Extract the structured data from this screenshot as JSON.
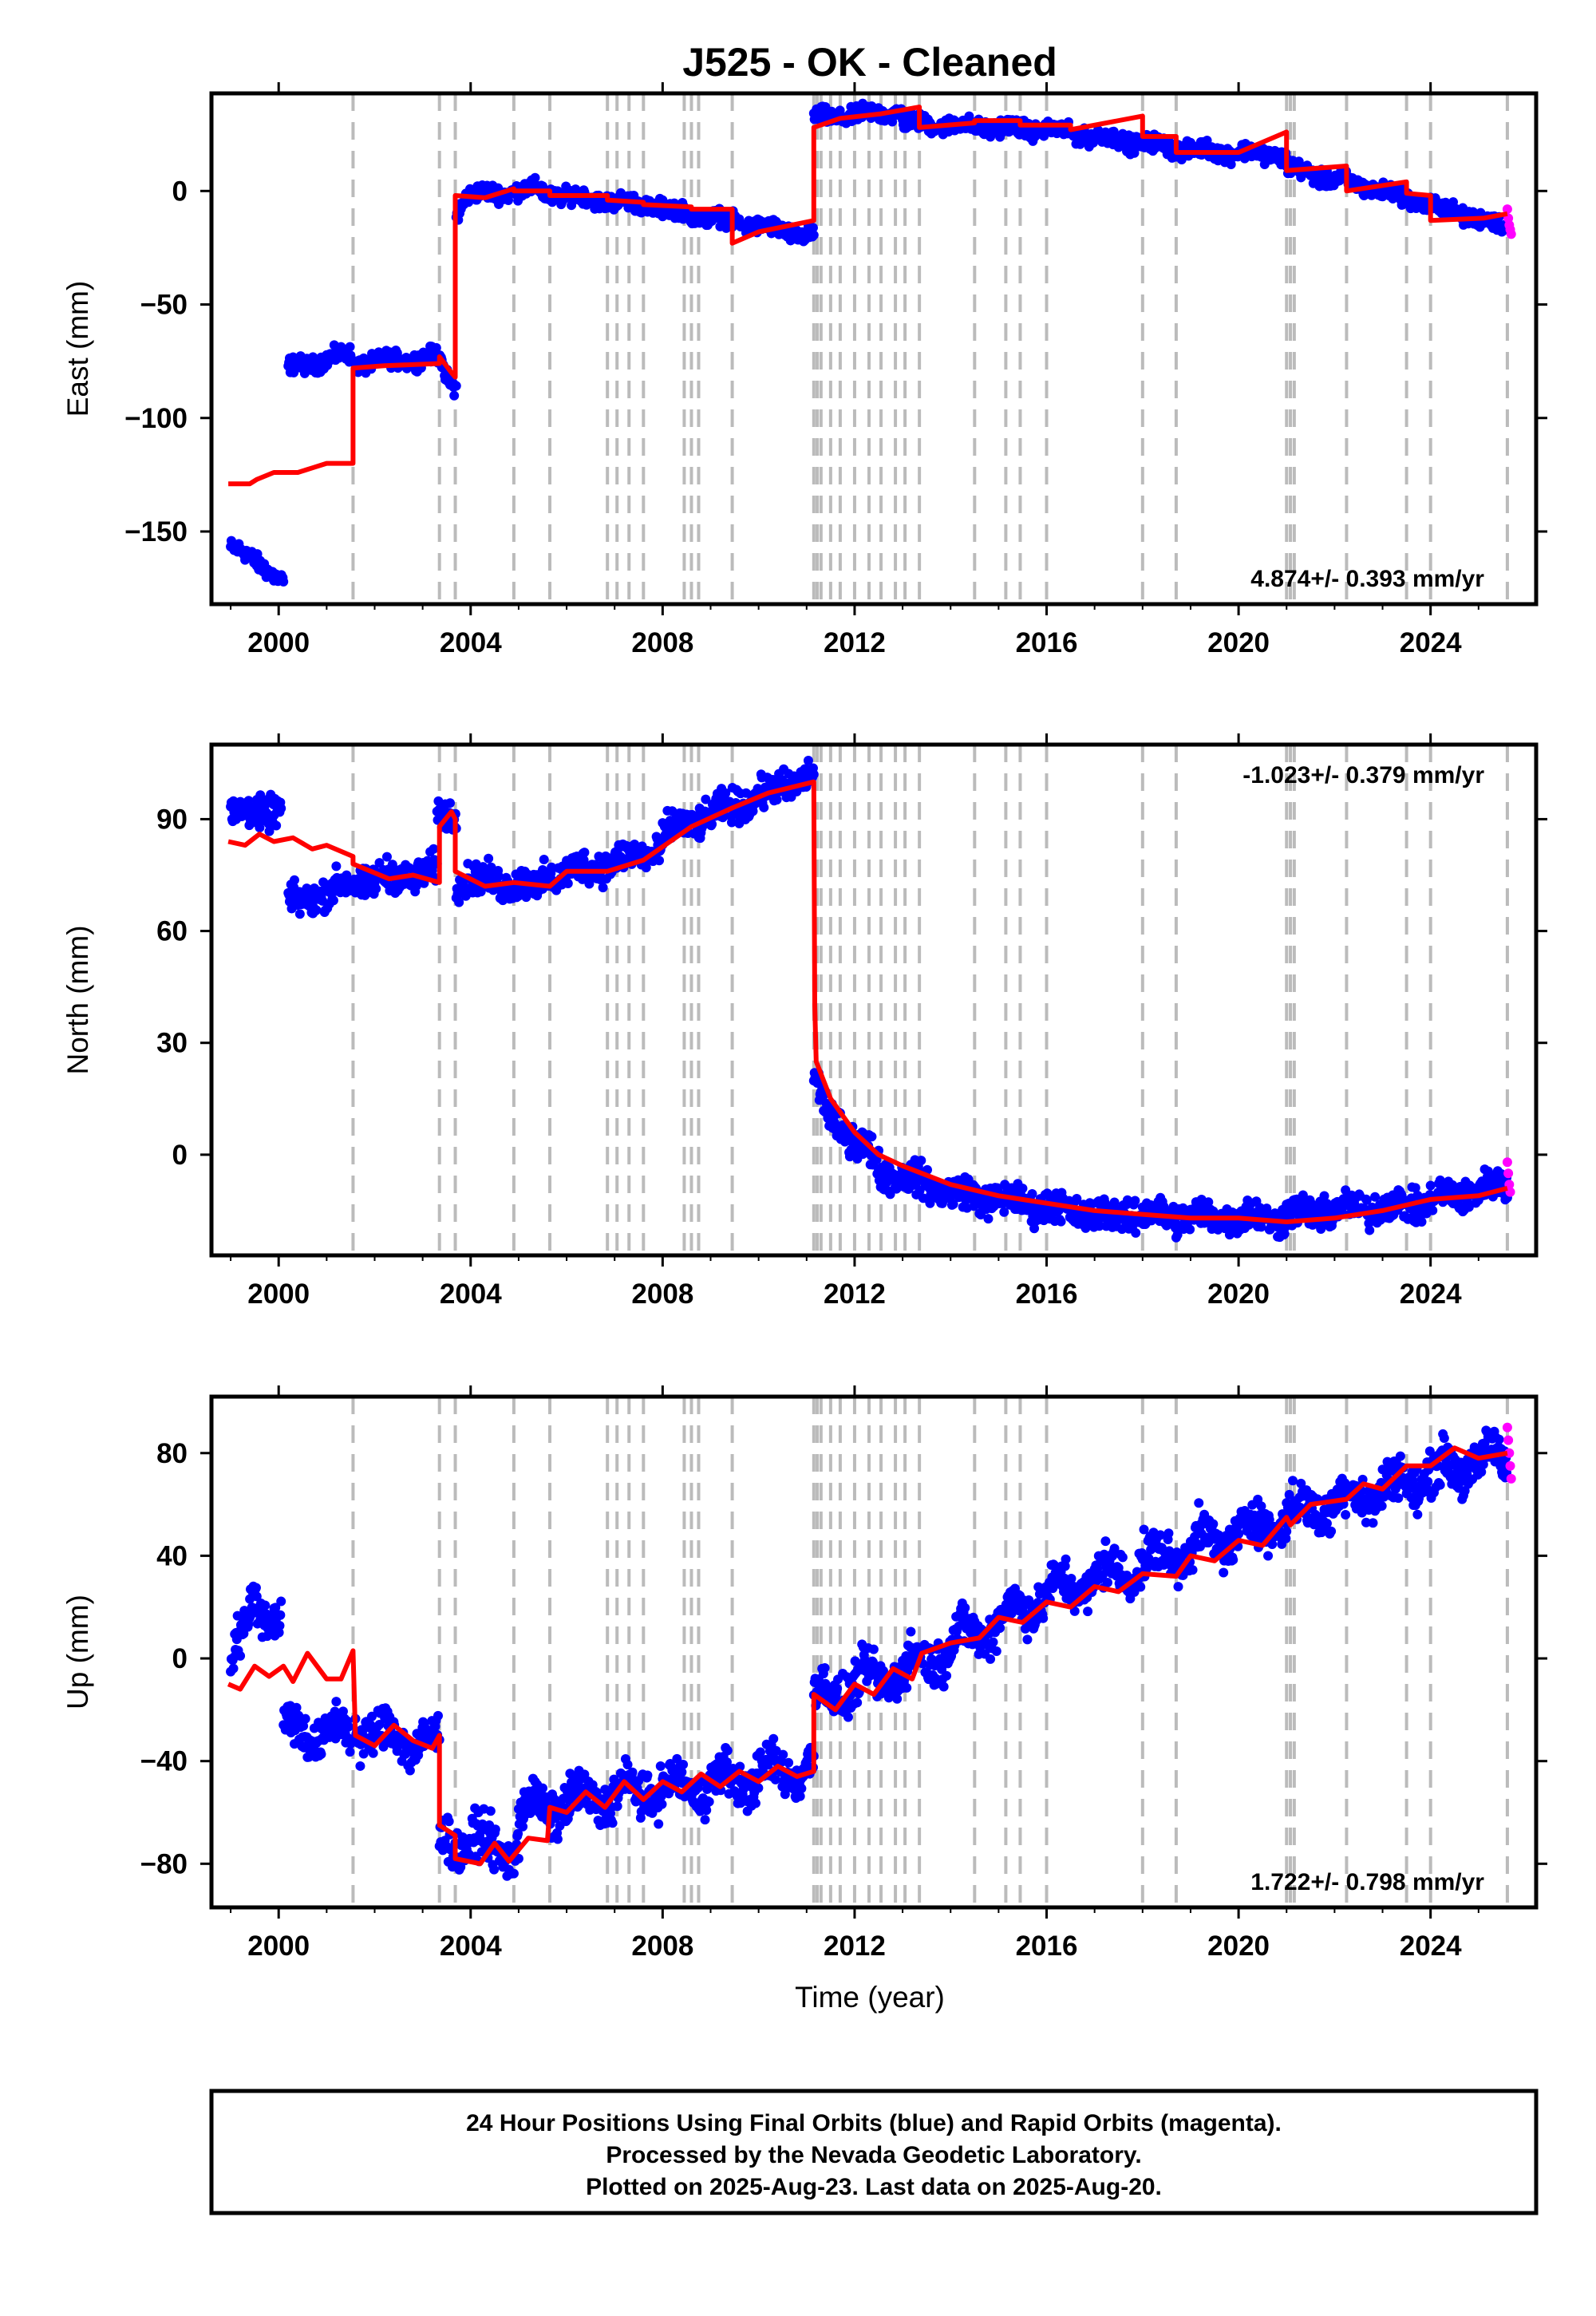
{
  "chart_data": {
    "type": "scatter",
    "title": "J525  - OK - Cleaned",
    "xlabel": "Time (year)",
    "x_ticks": [
      2000,
      2004,
      2008,
      2012,
      2016,
      2020,
      2024
    ],
    "xlim": [
      1998.6,
      2026.2
    ],
    "colors": {
      "final": "#0000ff",
      "rapid": "#ff00ff",
      "model": "#ff0000",
      "steps": "#bbbbbb"
    },
    "step_epochs": [
      2001.55,
      2003.35,
      2003.68,
      2004.9,
      2005.65,
      2006.85,
      2007.05,
      2007.3,
      2007.6,
      2008.45,
      2008.6,
      2008.75,
      2009.45,
      2011.15,
      2011.22,
      2011.3,
      2011.5,
      2011.7,
      2012.0,
      2012.3,
      2012.55,
      2012.85,
      2013.05,
      2013.35,
      2014.5,
      2015.15,
      2015.45,
      2016.0,
      2018.0,
      2018.7,
      2021.0,
      2021.08,
      2021.16,
      2022.25,
      2023.5,
      2024.0,
      2025.6
    ],
    "panels": [
      {
        "ylabel": "East (mm)",
        "ylim": [
          -182,
          43
        ],
        "y_ticks": [
          -150,
          -100,
          -50,
          0
        ],
        "rate": "4.874+/- 0.393 mm/yr",
        "rate_pos": "bottom-right",
        "noise": 2.5,
        "segments": [
          [
            1999.0,
            1999.7,
            -157,
            -165
          ],
          [
            1999.7,
            2000.1,
            -165,
            -173
          ],
          [
            2000.2,
            2001.5,
            -78,
            -72
          ],
          [
            2001.6,
            2003.4,
            -76,
            -73
          ],
          [
            2003.4,
            2003.7,
            -80,
            -86
          ],
          [
            2003.7,
            2003.9,
            -10,
            -3
          ],
          [
            2003.9,
            2005.5,
            -2,
            1
          ],
          [
            2005.5,
            2008.0,
            -1,
            -7
          ],
          [
            2008.0,
            2011.15,
            -8,
            -20
          ],
          [
            2011.15,
            2013.0,
            32,
            35
          ],
          [
            2013.0,
            2016.0,
            30,
            27
          ],
          [
            2016.0,
            2019.0,
            27,
            18
          ],
          [
            2019.0,
            2021.0,
            18,
            16
          ],
          [
            2021.0,
            2023.0,
            10,
            0
          ],
          [
            2023.0,
            2025.6,
            0,
            -16
          ]
        ],
        "rapid": [
          [
            2025.6,
            -8
          ],
          [
            2025.62,
            -12
          ],
          [
            2025.64,
            -15
          ],
          [
            2025.66,
            -17
          ],
          [
            2025.68,
            -19
          ]
        ],
        "model": [
          [
            1998.95,
            -129
          ],
          [
            1999.4,
            -129
          ],
          [
            1999.55,
            -127
          ],
          [
            1999.9,
            -124
          ],
          [
            2000.4,
            -124
          ],
          [
            2000.7,
            -122
          ],
          [
            2001.0,
            -120
          ],
          [
            2001.55,
            -120
          ],
          [
            2001.55,
            -78
          ],
          [
            2002.2,
            -77
          ],
          [
            2003.35,
            -76
          ],
          [
            2003.35,
            -73
          ],
          [
            2003.6,
            -80
          ],
          [
            2003.68,
            -82
          ],
          [
            2003.68,
            -2
          ],
          [
            2004.3,
            -3
          ],
          [
            2004.9,
            1
          ],
          [
            2004.9,
            0
          ],
          [
            2005.65,
            0
          ],
          [
            2005.65,
            -2
          ],
          [
            2006.85,
            -2
          ],
          [
            2006.85,
            -4
          ],
          [
            2007.6,
            -5
          ],
          [
            2007.6,
            -6
          ],
          [
            2008.6,
            -7
          ],
          [
            2008.6,
            -8
          ],
          [
            2009.45,
            -8
          ],
          [
            2009.45,
            -23
          ],
          [
            2010.0,
            -18
          ],
          [
            2011.15,
            -13
          ],
          [
            2011.15,
            28
          ],
          [
            2011.7,
            32
          ],
          [
            2012.55,
            34
          ],
          [
            2013.35,
            37
          ],
          [
            2013.35,
            28
          ],
          [
            2014.5,
            30
          ],
          [
            2014.5,
            31
          ],
          [
            2015.45,
            31
          ],
          [
            2015.45,
            29
          ],
          [
            2016.5,
            29
          ],
          [
            2016.5,
            27
          ],
          [
            2018.0,
            33
          ],
          [
            2018.0,
            24
          ],
          [
            2018.7,
            24
          ],
          [
            2018.7,
            17
          ],
          [
            2020.0,
            17
          ],
          [
            2021.0,
            26
          ],
          [
            2021.0,
            9
          ],
          [
            2022.25,
            11
          ],
          [
            2022.25,
            0
          ],
          [
            2023.5,
            4
          ],
          [
            2023.5,
            -1
          ],
          [
            2024.0,
            -2
          ],
          [
            2024.0,
            -13
          ],
          [
            2025.1,
            -12
          ],
          [
            2025.6,
            -10
          ]
        ]
      },
      {
        "ylabel": "North (mm)",
        "ylim": [
          -27,
          110
        ],
        "y_ticks": [
          0,
          30,
          60,
          90
        ],
        "rate": "-1.023+/- 0.379 mm/yr",
        "rate_pos": "top-right",
        "noise": 3,
        "segments": [
          [
            1999.0,
            2000.05,
            91,
            93
          ],
          [
            2000.2,
            2001.6,
            67,
            73
          ],
          [
            2001.6,
            2003.3,
            73,
            76
          ],
          [
            2003.3,
            2003.7,
            90,
            92
          ],
          [
            2003.7,
            2005.5,
            74,
            72
          ],
          [
            2005.5,
            2008.0,
            74,
            82
          ],
          [
            2008.0,
            2011.15,
            86,
            102
          ],
          [
            2011.15,
            2011.5,
            20,
            10
          ],
          [
            2011.5,
            2012.5,
            10,
            -2
          ],
          [
            2012.5,
            2014.0,
            -4,
            -10
          ],
          [
            2014.0,
            2017.0,
            -10,
            -16
          ],
          [
            2017.0,
            2021.0,
            -16,
            -17
          ],
          [
            2021.0,
            2024.0,
            -16,
            -13
          ],
          [
            2024.0,
            2025.6,
            -12,
            -8
          ]
        ],
        "rapid": [
          [
            2025.6,
            -2
          ],
          [
            2025.62,
            -5
          ],
          [
            2025.64,
            -8
          ],
          [
            2025.66,
            -10
          ]
        ],
        "model": [
          [
            1998.95,
            84
          ],
          [
            1999.3,
            83
          ],
          [
            1999.6,
            86
          ],
          [
            1999.9,
            84
          ],
          [
            2000.3,
            85
          ],
          [
            2000.7,
            82
          ],
          [
            2001.0,
            83
          ],
          [
            2001.55,
            80
          ],
          [
            2001.55,
            78
          ],
          [
            2002.3,
            74
          ],
          [
            2002.8,
            75
          ],
          [
            2003.35,
            73
          ],
          [
            2003.35,
            88
          ],
          [
            2003.6,
            92
          ],
          [
            2003.68,
            90
          ],
          [
            2003.68,
            76
          ],
          [
            2004.3,
            72
          ],
          [
            2004.9,
            73
          ],
          [
            2005.65,
            72
          ],
          [
            2006.0,
            76
          ],
          [
            2006.85,
            76
          ],
          [
            2007.6,
            79
          ],
          [
            2008.6,
            88
          ],
          [
            2009.45,
            93
          ],
          [
            2010.2,
            97
          ],
          [
            2011.15,
            100
          ],
          [
            2011.17,
            40
          ],
          [
            2011.2,
            25
          ],
          [
            2011.5,
            15
          ],
          [
            2012.0,
            6
          ],
          [
            2012.5,
            0
          ],
          [
            2013.0,
            -3
          ],
          [
            2014.0,
            -8
          ],
          [
            2015.0,
            -11
          ],
          [
            2016.0,
            -13
          ],
          [
            2017.0,
            -15
          ],
          [
            2018.0,
            -16
          ],
          [
            2019.0,
            -17
          ],
          [
            2020.0,
            -17
          ],
          [
            2021.0,
            -18
          ],
          [
            2022.0,
            -17
          ],
          [
            2023.0,
            -15
          ],
          [
            2024.0,
            -12
          ],
          [
            2025.0,
            -11
          ],
          [
            2025.6,
            -9
          ]
        ]
      },
      {
        "ylabel": "Up (mm)",
        "ylim": [
          -97,
          102
        ],
        "y_ticks": [
          -80,
          -40,
          0,
          40,
          80
        ],
        "rate": "1.722+/- 0.798 mm/yr",
        "rate_pos": "bottom-right",
        "noise": 6,
        "segments": [
          [
            1999.0,
            1999.4,
            0,
            10
          ],
          [
            1999.4,
            2000.05,
            25,
            15
          ],
          [
            2000.1,
            2001.5,
            -28,
            -30
          ],
          [
            2001.6,
            2003.35,
            -27,
            -34
          ],
          [
            2003.35,
            2005.0,
            -70,
            -75
          ],
          [
            2005.0,
            2008.0,
            -60,
            -50
          ],
          [
            2008.0,
            2011.15,
            -52,
            -42
          ],
          [
            2011.15,
            2013.0,
            -15,
            -5
          ],
          [
            2013.0,
            2016.0,
            -5,
            25
          ],
          [
            2016.0,
            2021.0,
            25,
            55
          ],
          [
            2021.0,
            2025.6,
            55,
            80
          ]
        ],
        "rapid": [
          [
            2025.6,
            90
          ],
          [
            2025.62,
            85
          ],
          [
            2025.64,
            80
          ],
          [
            2025.66,
            75
          ],
          [
            2025.68,
            70
          ]
        ],
        "model": [
          [
            1998.95,
            -10
          ],
          [
            1999.2,
            -12
          ],
          [
            1999.5,
            -3
          ],
          [
            1999.8,
            -7
          ],
          [
            2000.1,
            -3
          ],
          [
            2000.3,
            -9
          ],
          [
            2000.6,
            2
          ],
          [
            2001.0,
            -8
          ],
          [
            2001.3,
            -8
          ],
          [
            2001.55,
            3
          ],
          [
            2001.6,
            -30
          ],
          [
            2002.0,
            -34
          ],
          [
            2002.4,
            -26
          ],
          [
            2002.8,
            -32
          ],
          [
            2003.2,
            -35
          ],
          [
            2003.35,
            -30
          ],
          [
            2003.35,
            -65
          ],
          [
            2003.68,
            -69
          ],
          [
            2003.68,
            -78
          ],
          [
            2004.2,
            -80
          ],
          [
            2004.5,
            -72
          ],
          [
            2004.8,
            -79
          ],
          [
            2005.2,
            -70
          ],
          [
            2005.6,
            -71
          ],
          [
            2005.65,
            -58
          ],
          [
            2006.0,
            -60
          ],
          [
            2006.4,
            -52
          ],
          [
            2006.8,
            -58
          ],
          [
            2007.2,
            -48
          ],
          [
            2007.6,
            -55
          ],
          [
            2008.0,
            -48
          ],
          [
            2008.4,
            -52
          ],
          [
            2008.8,
            -45
          ],
          [
            2009.2,
            -50
          ],
          [
            2009.6,
            -44
          ],
          [
            2010.0,
            -48
          ],
          [
            2010.4,
            -42
          ],
          [
            2010.8,
            -46
          ],
          [
            2011.15,
            -44
          ],
          [
            2011.15,
            -14
          ],
          [
            2011.6,
            -20
          ],
          [
            2012.0,
            -10
          ],
          [
            2012.4,
            -14
          ],
          [
            2012.8,
            -4
          ],
          [
            2013.2,
            -8
          ],
          [
            2013.4,
            2
          ],
          [
            2014.0,
            6
          ],
          [
            2014.6,
            8
          ],
          [
            2015.0,
            16
          ],
          [
            2015.5,
            14
          ],
          [
            2016.0,
            22
          ],
          [
            2016.5,
            20
          ],
          [
            2017.0,
            28
          ],
          [
            2017.5,
            26
          ],
          [
            2018.0,
            33
          ],
          [
            2018.7,
            32
          ],
          [
            2019.0,
            40
          ],
          [
            2019.5,
            38
          ],
          [
            2020.0,
            46
          ],
          [
            2020.5,
            44
          ],
          [
            2021.0,
            55
          ],
          [
            2021.08,
            52
          ],
          [
            2021.5,
            60
          ],
          [
            2022.25,
            62
          ],
          [
            2022.6,
            68
          ],
          [
            2023.0,
            66
          ],
          [
            2023.5,
            75
          ],
          [
            2024.0,
            75
          ],
          [
            2024.5,
            82
          ],
          [
            2025.0,
            78
          ],
          [
            2025.6,
            80
          ]
        ]
      }
    ]
  },
  "footer": {
    "line1": "24 Hour Positions Using Final Orbits (blue) and Rapid Orbits (magenta).",
    "line2": "Processed by the Nevada Geodetic Laboratory.",
    "line3": "Plotted on 2025-Aug-23. Last data on 2025-Aug-20."
  }
}
